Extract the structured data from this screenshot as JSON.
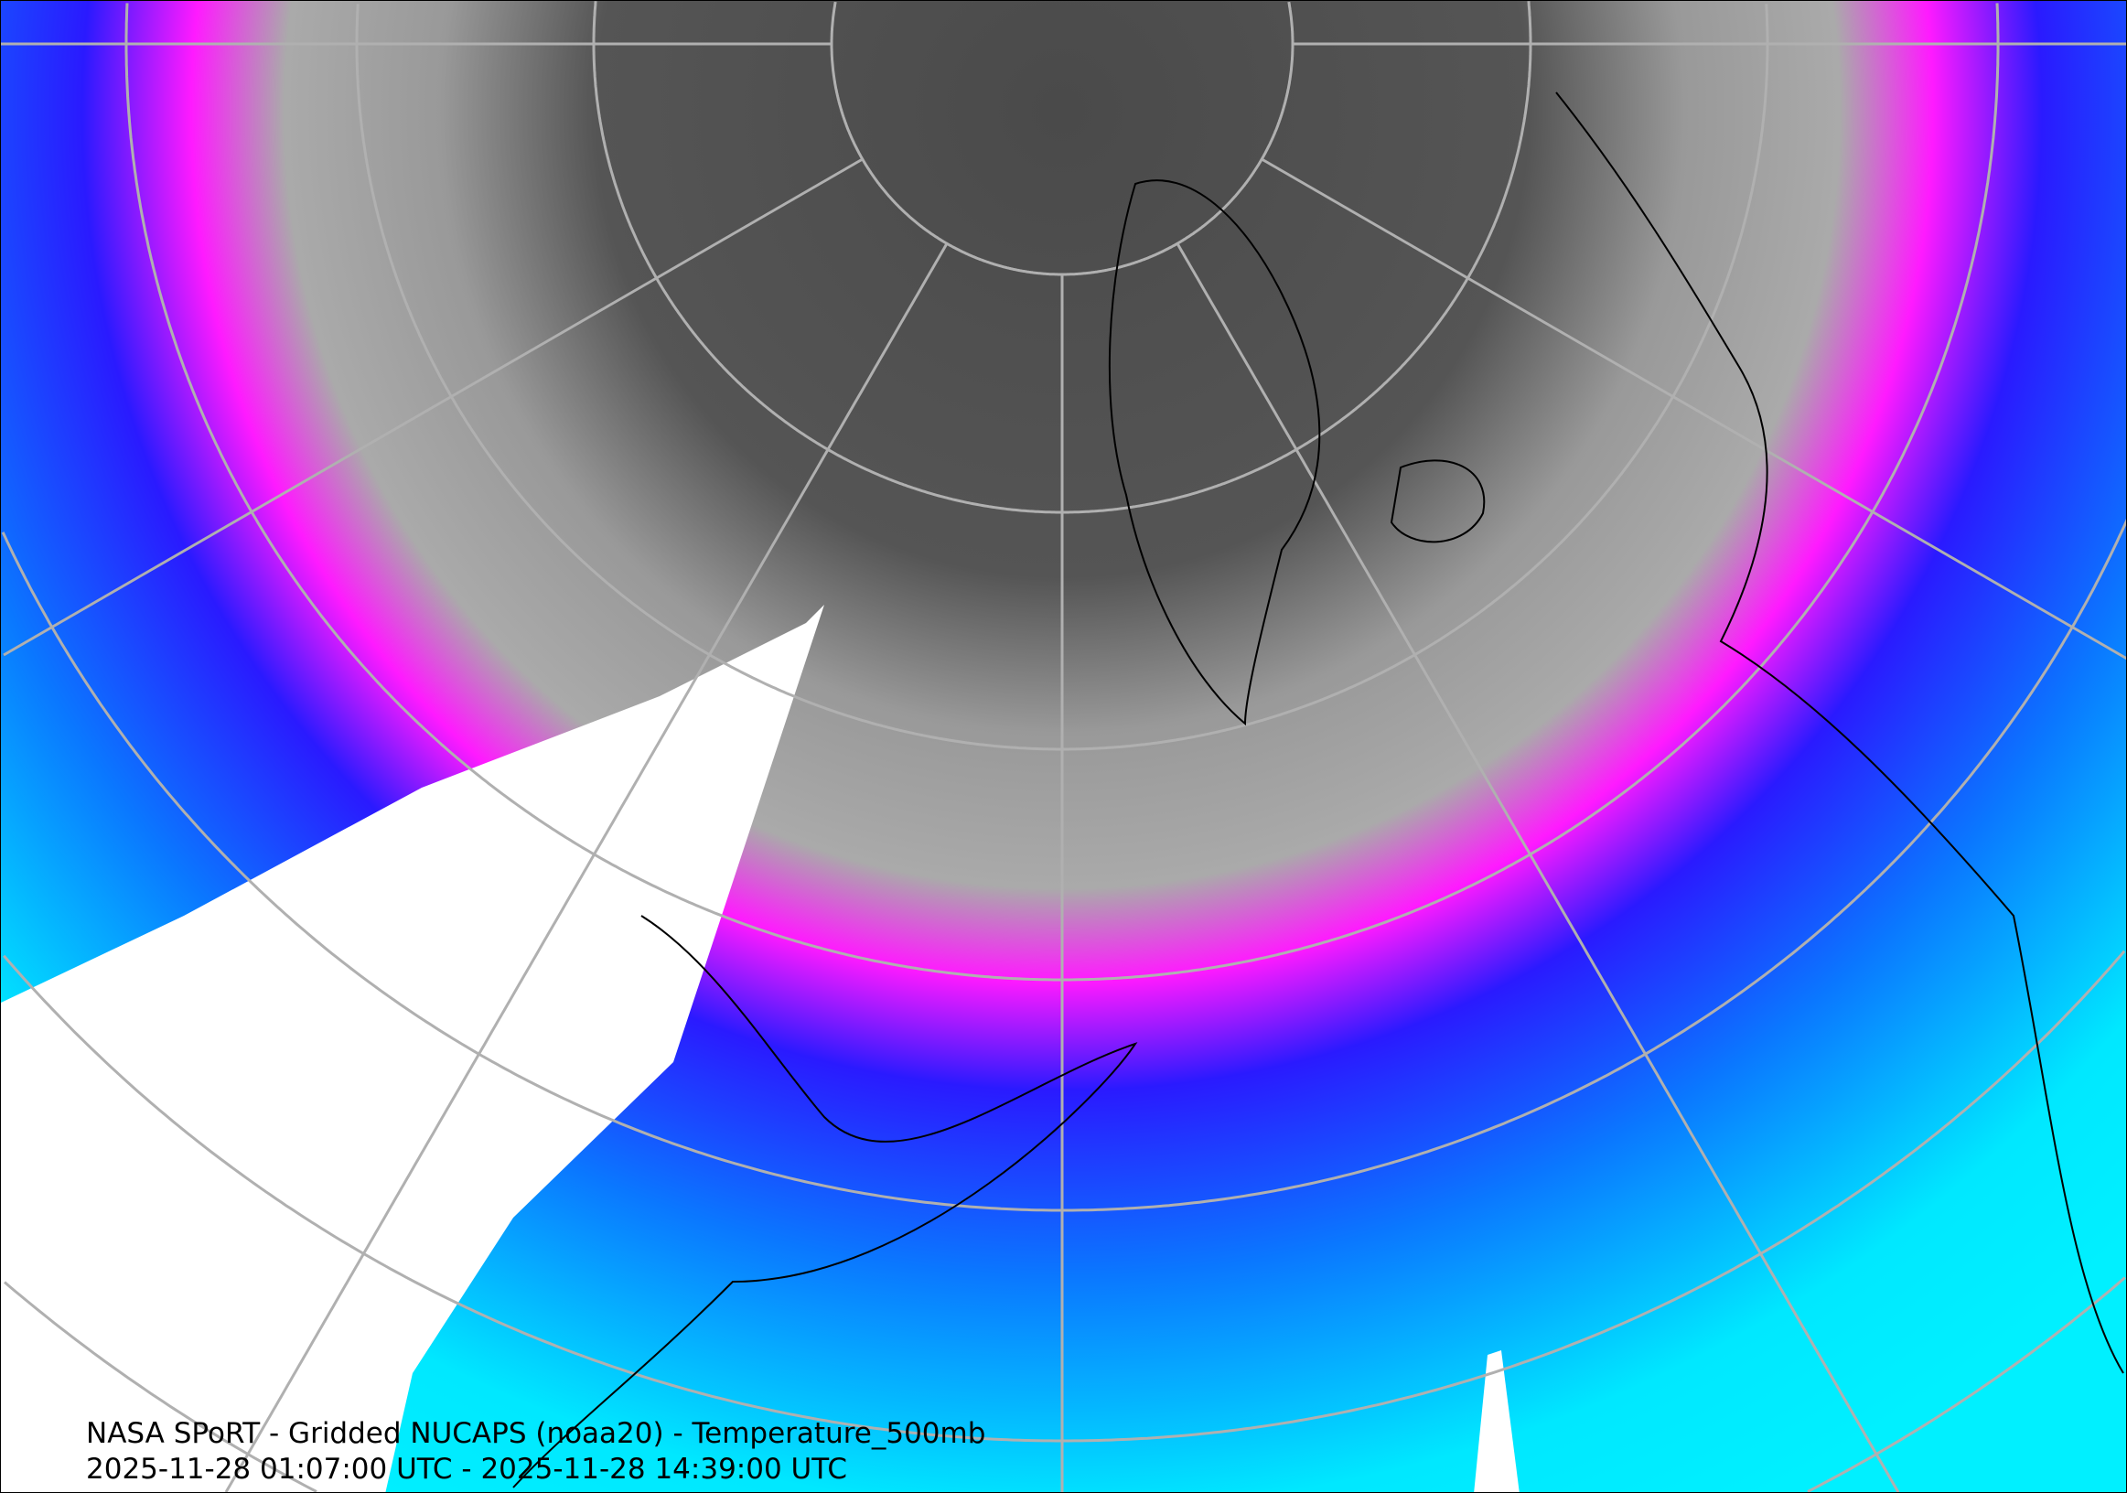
{
  "map": {
    "title_line": "NASA SPoRT - Gridded NUCAPS (noaa20) - Temperature_500mb",
    "time_range": "2025-11-28 01:07:00 UTC - 2025-11-28 14:39:00 UTC",
    "projection": "north polar stereographic",
    "field": "Temperature_500mb",
    "colors": {
      "coldest": "#4a4a4a",
      "cold": "#a6a6a6",
      "magenta": "#ff1aff",
      "blue": "#2a1aff",
      "medium_blue": "#0a78ff",
      "cyan": "#00f0ff",
      "warmest": "#00c890",
      "no_data": "#ffffff",
      "graticule": "#b0b0b0",
      "coastlines": "#000000"
    }
  }
}
